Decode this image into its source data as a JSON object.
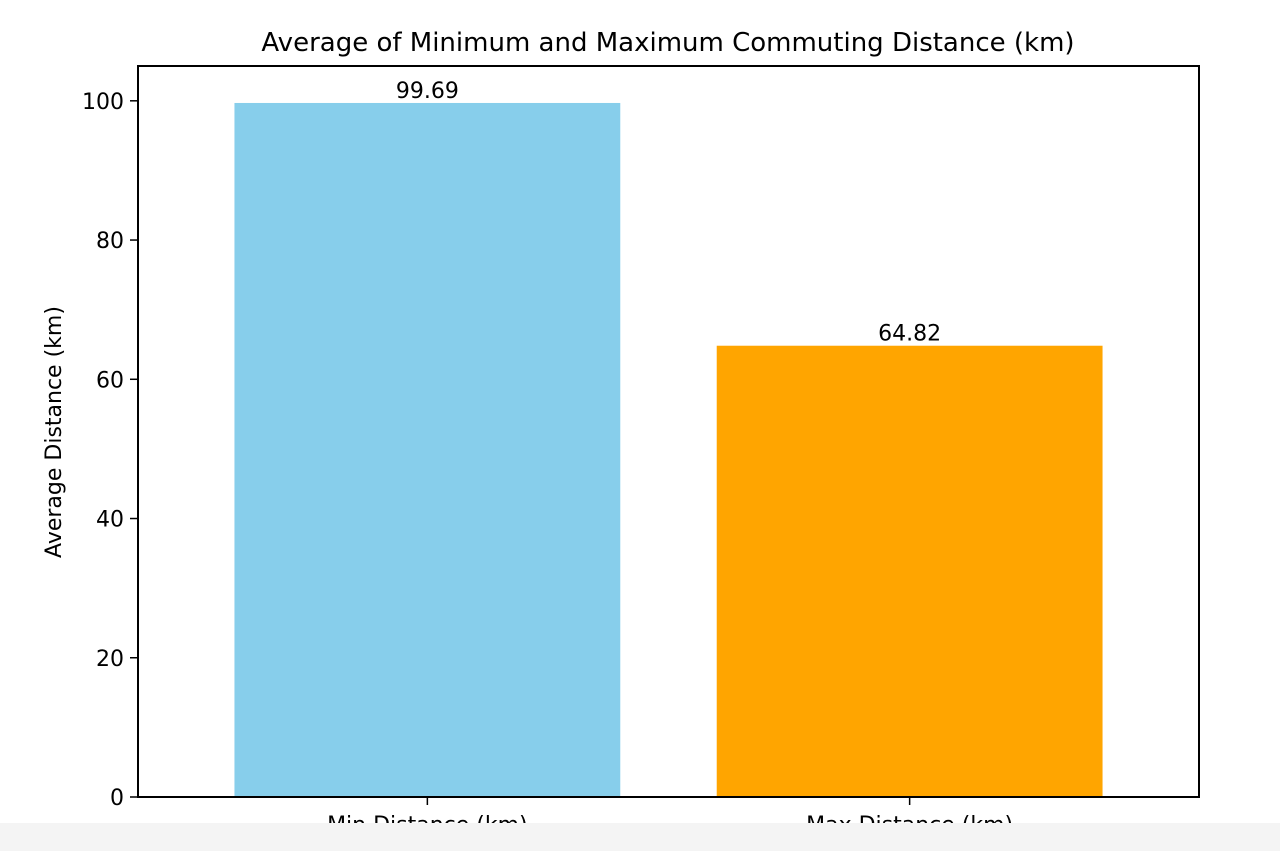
{
  "chart_data": {
    "type": "bar",
    "title": "Average of Minimum and Maximum Commuting Distance (km)",
    "xlabel": "",
    "ylabel": "Average Distance (km)",
    "categories": [
      "Min Distance (km)",
      "Max Distance (km)"
    ],
    "values": [
      99.69,
      64.82
    ],
    "value_labels": [
      "99.69",
      "64.82"
    ],
    "colors": [
      "#87ceeb",
      "#ffa500"
    ],
    "ylim": [
      0,
      105
    ],
    "yticks": [
      0,
      20,
      40,
      60,
      80,
      100
    ],
    "ytick_labels": [
      "0",
      "20",
      "40",
      "60",
      "80",
      "100"
    ],
    "grid": false,
    "legend": "none"
  }
}
